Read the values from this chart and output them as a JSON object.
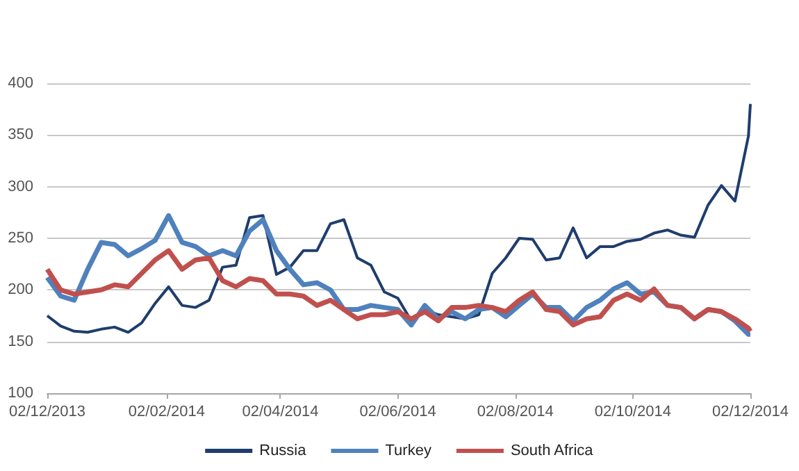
{
  "chart_data": {
    "type": "line",
    "x": [
      "2013-12-02",
      "2013-12-09",
      "2013-12-16",
      "2013-12-23",
      "2013-12-30",
      "2014-01-06",
      "2014-01-13",
      "2014-01-20",
      "2014-01-27",
      "2014-02-03",
      "2014-02-10",
      "2014-02-17",
      "2014-02-24",
      "2014-03-03",
      "2014-03-10",
      "2014-03-17",
      "2014-03-24",
      "2014-03-31",
      "2014-04-07",
      "2014-04-14",
      "2014-04-21",
      "2014-04-28",
      "2014-05-05",
      "2014-05-12",
      "2014-05-19",
      "2014-05-26",
      "2014-06-02",
      "2014-06-09",
      "2014-06-16",
      "2014-06-23",
      "2014-06-30",
      "2014-07-07",
      "2014-07-14",
      "2014-07-21",
      "2014-07-28",
      "2014-08-04",
      "2014-08-11",
      "2014-08-18",
      "2014-08-25",
      "2014-09-01",
      "2014-09-08",
      "2014-09-15",
      "2014-09-22",
      "2014-09-29",
      "2014-10-06",
      "2014-10-13",
      "2014-10-20",
      "2014-10-27",
      "2014-11-03",
      "2014-11-10",
      "2014-11-17",
      "2014-11-24",
      "2014-12-01",
      "2014-12-02"
    ],
    "series": [
      {
        "name": "Russia",
        "color": "#1f3d6d",
        "values": [
          175,
          165,
          160,
          159,
          162,
          164,
          159,
          168,
          187,
          203,
          185,
          183,
          190,
          222,
          224,
          270,
          272,
          215,
          222,
          238,
          238,
          264,
          268,
          231,
          224,
          198,
          192,
          170,
          181,
          176,
          174,
          172,
          176,
          216,
          231,
          250,
          249,
          229,
          231,
          260,
          231,
          242,
          242,
          247,
          249,
          255,
          258,
          253,
          251,
          282,
          301,
          286,
          349,
          380
        ]
      },
      {
        "name": "Turkey",
        "color": "#4f81bd",
        "values": [
          212,
          194,
          190,
          220,
          246,
          244,
          233,
          240,
          248,
          272,
          246,
          242,
          233,
          238,
          233,
          257,
          268,
          238,
          220,
          205,
          207,
          200,
          181,
          181,
          185,
          183,
          181,
          166,
          185,
          172,
          179,
          172,
          181,
          183,
          174,
          185,
          196,
          183,
          183,
          170,
          183,
          190,
          201,
          207,
          196,
          198,
          185,
          183,
          172,
          181,
          179,
          170,
          157,
          157
        ]
      },
      {
        "name": "South Africa",
        "color": "#c0504d",
        "values": [
          220,
          200,
          196,
          198,
          200,
          205,
          203,
          216,
          229,
          238,
          220,
          229,
          231,
          209,
          203,
          211,
          209,
          196,
          196,
          194,
          185,
          190,
          181,
          172,
          176,
          176,
          179,
          172,
          179,
          170,
          183,
          183,
          185,
          183,
          179,
          190,
          198,
          181,
          179,
          166,
          172,
          174,
          190,
          196,
          190,
          201,
          185,
          183,
          172,
          181,
          179,
          172,
          163,
          160
        ]
      }
    ],
    "xlim": [
      "2013-12-02",
      "2014-12-02"
    ],
    "xticks": [
      {
        "value": "2013-12-02",
        "label": "02/12/2013"
      },
      {
        "value": "2014-02-02",
        "label": "02/02/2014"
      },
      {
        "value": "2014-04-02",
        "label": "02/04/2014"
      },
      {
        "value": "2014-06-02",
        "label": "02/06/2014"
      },
      {
        "value": "2014-08-02",
        "label": "02/08/2014"
      },
      {
        "value": "2014-10-02",
        "label": "02/10/2014"
      },
      {
        "value": "2014-12-02",
        "label": "02/12/2014"
      }
    ],
    "ylim": [
      100,
      400
    ],
    "yticks": [
      100,
      150,
      200,
      250,
      300,
      350,
      400
    ],
    "grid": "y",
    "legend": "bottom"
  }
}
